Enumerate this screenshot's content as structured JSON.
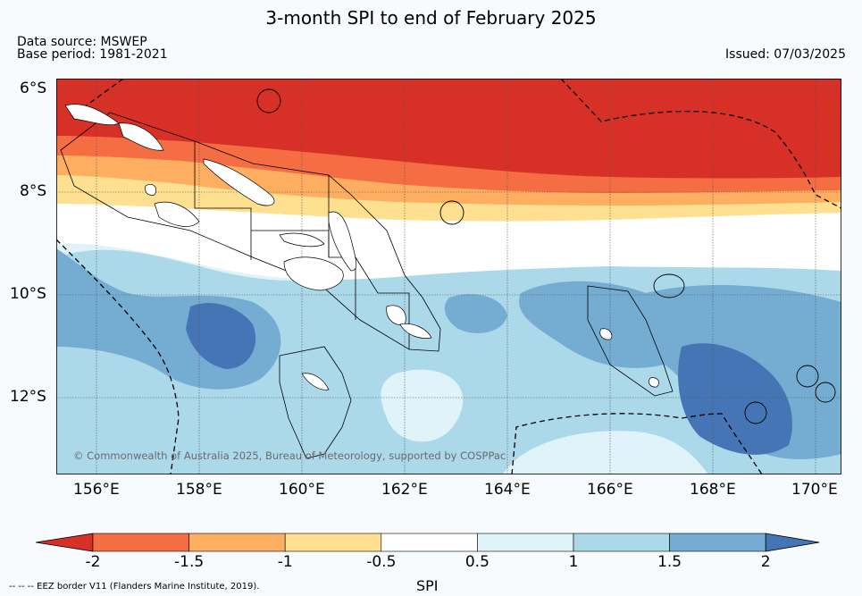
{
  "title": "3-month SPI to end of February 2025",
  "data_source": "Data source: MSWEP",
  "base_period": "Base period: 1981-2021",
  "issued": "Issued: 07/03/2025",
  "copyright": "© Commonwealth of Australia 2025, Bureau of Meteorology, supported by COSPPac",
  "footer_note": "--  --  -- EEZ border V11 (Flanders Marine Institute, 2019).",
  "lat_labels": [
    "6°S",
    "8°S",
    "10°S",
    "12°S"
  ],
  "lon_labels": [
    "156°E",
    "158°E",
    "160°E",
    "162°E",
    "164°E",
    "166°E",
    "168°E",
    "170°E"
  ],
  "colorbar": {
    "label": "SPI",
    "ticks": [
      "-2",
      "-1.5",
      "-1",
      "-0.5",
      "0.5",
      "1",
      "1.5",
      "2"
    ],
    "colors": [
      "#d73027",
      "#f46d43",
      "#fdae61",
      "#fee090",
      "#ffffff",
      "#e0f3f8",
      "#abd9e9",
      "#74add1",
      "#4575b4"
    ]
  }
}
